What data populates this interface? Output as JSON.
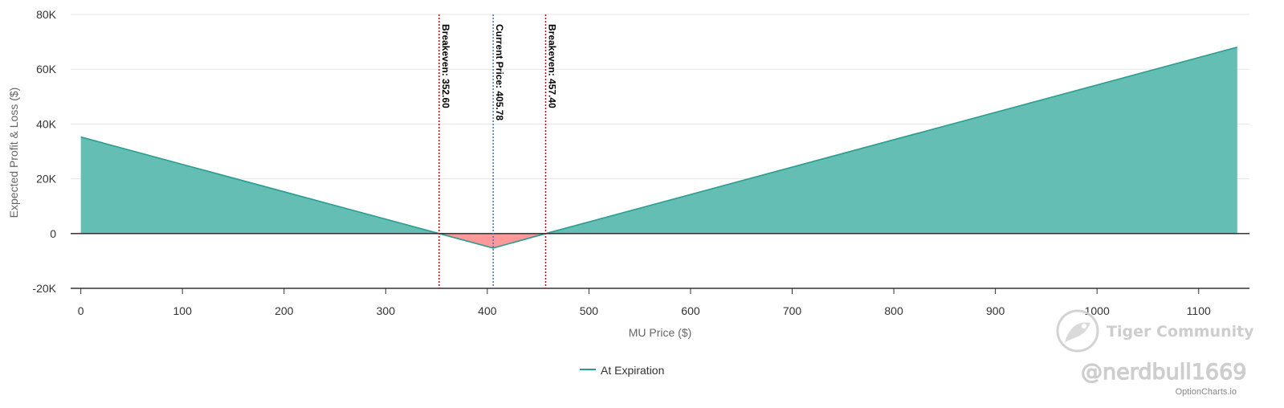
{
  "chart_data": {
    "type": "area",
    "xlabel": "MU Price ($)",
    "ylabel": "Expected Profit & Loss ($)",
    "xlim": [
      -10,
      1150
    ],
    "ylim": [
      -20000,
      80000
    ],
    "x_ticks": [
      0,
      100,
      200,
      300,
      400,
      500,
      600,
      700,
      800,
      900,
      1000,
      1100
    ],
    "x_tick_labels": [
      "0",
      "100",
      "200",
      "300",
      "400",
      "500",
      "600",
      "700",
      "800",
      "900",
      "1000",
      "1100"
    ],
    "y_ticks": [
      -20000,
      0,
      20000,
      40000,
      60000,
      80000
    ],
    "y_tick_labels": [
      "-20K",
      "0",
      "20K",
      "40K",
      "60K",
      "80K"
    ],
    "grid": true,
    "legend_position": "bottom-center",
    "series": [
      {
        "name": "At Expiration",
        "x": [
          0,
          352.6,
          405.78,
          457.4,
          1138
        ],
        "y": [
          35260,
          0,
          -5300,
          0,
          68060
        ]
      }
    ],
    "vertical_markers": [
      {
        "x": 352.6,
        "label": "Breakeven: 352.60",
        "color": "#d40000",
        "style": "dotted"
      },
      {
        "x": 405.78,
        "label": "Current Price: 405.78",
        "color": "#3a6fd8",
        "style": "dotted"
      },
      {
        "x": 457.4,
        "label": "Breakeven: 457.40",
        "color": "#d40000",
        "style": "dotted"
      }
    ],
    "colors": {
      "profit_fill": "#5dbbb0",
      "profit_line": "#2a9d8f",
      "loss_fill": "#ff9494",
      "loss_line": "#e06060",
      "grid": "#e6e6e6",
      "axis": "#333333"
    }
  },
  "watermark": {
    "brand": "Tiger Community",
    "handle": "@nerdbull1669",
    "icon": "tiger-logo-icon"
  },
  "credit": "OptionCharts.io"
}
